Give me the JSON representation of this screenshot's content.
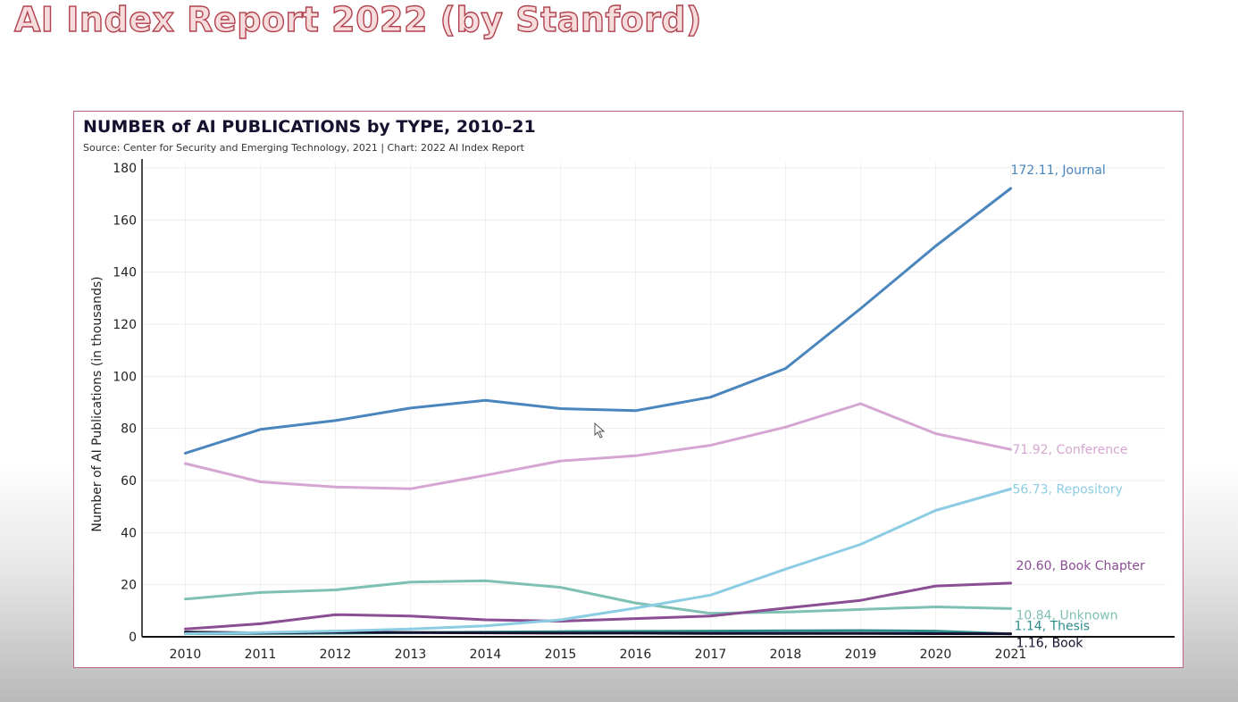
{
  "slide": {
    "title": "AI Index Report 2022 (by Stanford)"
  },
  "chart_data": {
    "type": "line",
    "title": "NUMBER of AI PUBLICATIONS by TYPE, 2010–21",
    "subtitle": "Source: Center for Security and Emerging Technology, 2021 | Chart: 2022 AI Index Report",
    "xlabel": "",
    "ylabel": "Number of AI Publications (in thousands)",
    "ylim": [
      0,
      180
    ],
    "yticks": [
      0,
      20,
      40,
      60,
      80,
      100,
      120,
      140,
      160,
      180
    ],
    "x": [
      2010,
      2011,
      2012,
      2013,
      2014,
      2015,
      2016,
      2017,
      2018,
      2019,
      2020,
      2021
    ],
    "grid": true,
    "series": [
      {
        "name": "Journal",
        "end_label": "172.11, Journal",
        "color": "#4a86bd",
        "values": [
          70.5,
          79.6,
          83.0,
          87.8,
          90.8,
          87.6,
          86.8,
          92.0,
          103.0,
          126.0,
          150.0,
          172.11
        ]
      },
      {
        "name": "Conference",
        "end_label": "71.92, Conference",
        "color": "#d6a6d2",
        "values": [
          66.5,
          59.5,
          57.5,
          56.8,
          62.0,
          67.5,
          69.5,
          73.5,
          80.5,
          89.5,
          78.0,
          71.92
        ]
      },
      {
        "name": "Repository",
        "end_label": "56.73, Repository",
        "color": "#8ccde3",
        "values": [
          1.2,
          1.6,
          2.2,
          3.0,
          4.2,
          6.5,
          11.0,
          16.0,
          26.0,
          35.5,
          48.5,
          56.73
        ]
      },
      {
        "name": "Book Chapter",
        "end_label": "20.60, Book Chapter",
        "color": "#8a4e93",
        "values": [
          3.0,
          5.0,
          8.5,
          8.0,
          6.5,
          6.0,
          7.0,
          8.0,
          11.0,
          14.0,
          19.5,
          20.6
        ]
      },
      {
        "name": "Unknown",
        "end_label": "10.84, Unknown",
        "color": "#7ec0b4",
        "values": [
          14.5,
          17.0,
          18.0,
          21.0,
          21.5,
          19.0,
          13.0,
          9.0,
          9.5,
          10.5,
          11.5,
          10.84
        ]
      },
      {
        "name": "Book",
        "end_label": "1.16, Book",
        "color": "#15112e",
        "values": [
          1.8,
          1.5,
          1.8,
          1.6,
          1.5,
          1.4,
          1.4,
          1.3,
          1.3,
          1.3,
          1.2,
          1.16
        ]
      },
      {
        "name": "Thesis",
        "end_label": "1.14, Thesis",
        "color": "#2e8b8b",
        "values": [
          1.2,
          1.3,
          1.4,
          1.6,
          1.8,
          2.0,
          2.1,
          2.2,
          2.3,
          2.4,
          2.2,
          1.14
        ]
      }
    ]
  }
}
